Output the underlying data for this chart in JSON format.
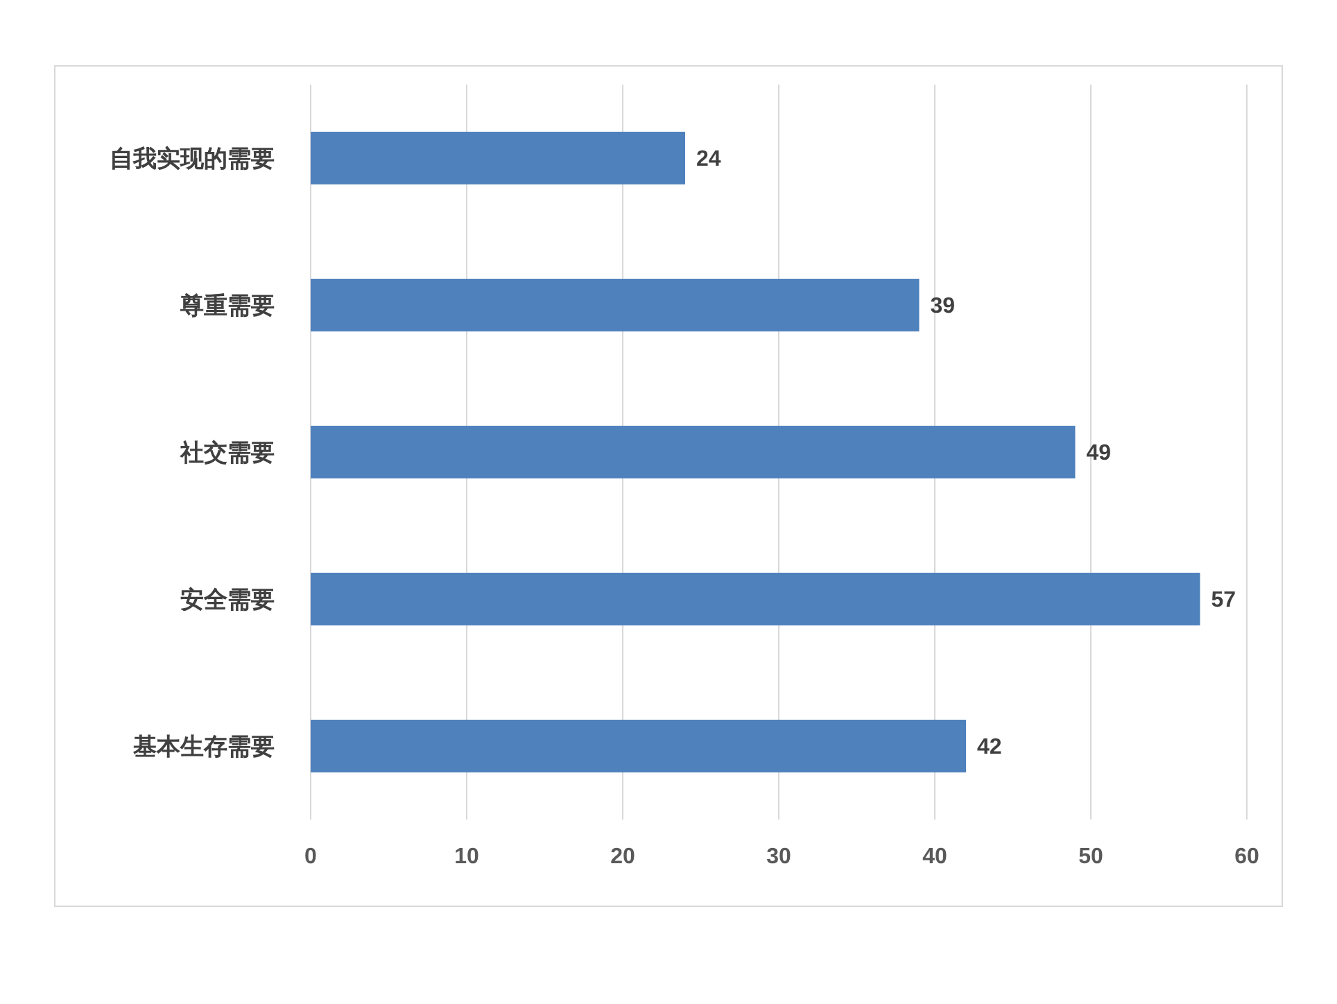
{
  "chart_data": {
    "type": "bar",
    "orientation": "horizontal",
    "categories": [
      "自我实现的需要",
      "尊重需要",
      "社交需要",
      "安全需要",
      "基本生存需要"
    ],
    "values": [
      24,
      39,
      49,
      57,
      42
    ],
    "color": "#4f81bd",
    "xlim": [
      0,
      60
    ],
    "xticks": [
      0,
      10,
      20,
      30,
      40,
      50,
      60
    ],
    "grid": "x",
    "data_labels": true
  }
}
